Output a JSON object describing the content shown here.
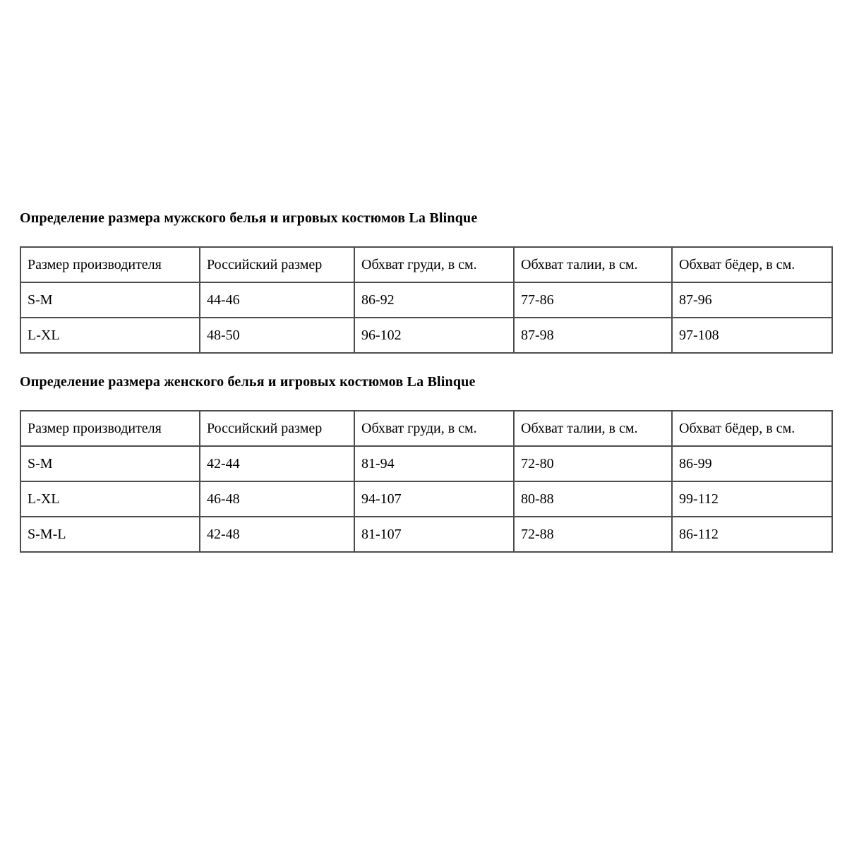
{
  "document": {
    "background": "#ffffff",
    "text_color": "#000000",
    "table_border_color": "#4d4d4d",
    "brand": "La Blinque"
  },
  "sections": [
    {
      "heading": "Определение размера мужского белья и игровых костюмов La Blinque",
      "table": {
        "headers": [
          "Размер производителя",
          "Российский размер",
          "Обхват груди, в см.",
          "Обхват талии, в см.",
          "Обхват бёдер, в см."
        ],
        "rows": [
          [
            "S-M",
            "44-46",
            "86-92",
            "77-86",
            "87-96"
          ],
          [
            "L-XL",
            "48-50",
            "96-102",
            "87-98",
            "97-108"
          ]
        ]
      }
    },
    {
      "heading": "Определение размера женского белья и игровых костюмов La Blinque",
      "table": {
        "headers": [
          "Размер производителя",
          "Российский размер",
          "Обхват груди, в см.",
          "Обхват талии, в см.",
          "Обхват бёдер, в см."
        ],
        "rows": [
          [
            "S-M",
            "42-44",
            "81-94",
            "72-80",
            "86-99"
          ],
          [
            "L-XL",
            "46-48",
            "94-107",
            "80-88",
            "99-112"
          ],
          [
            "S-M-L",
            "42-48",
            "81-107",
            "72-88",
            "86-112"
          ]
        ]
      }
    }
  ]
}
